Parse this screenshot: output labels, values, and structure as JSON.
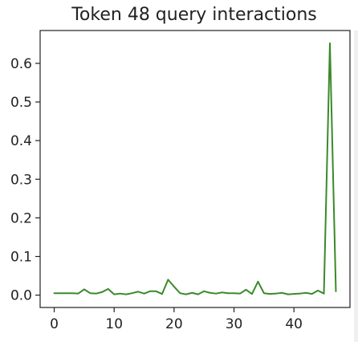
{
  "chart_data": {
    "type": "line",
    "title": "Token 48 query interactions",
    "xlabel": "",
    "ylabel": "",
    "xlim": [
      -2.35,
      49.35
    ],
    "ylim": [
      -0.032,
      0.685
    ],
    "grid": false,
    "x": [
      0,
      1,
      2,
      3,
      4,
      5,
      6,
      7,
      8,
      9,
      10,
      11,
      12,
      13,
      14,
      15,
      16,
      17,
      18,
      19,
      20,
      21,
      22,
      23,
      24,
      25,
      26,
      27,
      28,
      29,
      30,
      31,
      32,
      33,
      34,
      35,
      36,
      37,
      38,
      39,
      40,
      41,
      42,
      43,
      44,
      45,
      46,
      47
    ],
    "series": [
      {
        "color": "#3a8a2a",
        "values": [
          0.005,
          0.005,
          0.005,
          0.005,
          0.004,
          0.015,
          0.005,
          0.004,
          0.008,
          0.016,
          0.002,
          0.004,
          0.002,
          0.005,
          0.009,
          0.004,
          0.01,
          0.01,
          0.003,
          0.04,
          0.022,
          0.005,
          0.002,
          0.006,
          0.002,
          0.01,
          0.006,
          0.004,
          0.007,
          0.005,
          0.005,
          0.004,
          0.014,
          0.003,
          0.035,
          0.005,
          0.003,
          0.004,
          0.006,
          0.002,
          0.003,
          0.004,
          0.006,
          0.003,
          0.012,
          0.004,
          0.652,
          0.01
        ]
      }
    ],
    "xticks": [
      0,
      10,
      20,
      30,
      40
    ],
    "yticks": [
      0.0,
      0.1,
      0.2,
      0.3,
      0.4,
      0.5,
      0.6
    ],
    "xtick_labels": [
      "0",
      "10",
      "20",
      "30",
      "40"
    ],
    "ytick_labels": [
      "0.0",
      "0.1",
      "0.2",
      "0.3",
      "0.4",
      "0.5",
      "0.6"
    ]
  }
}
